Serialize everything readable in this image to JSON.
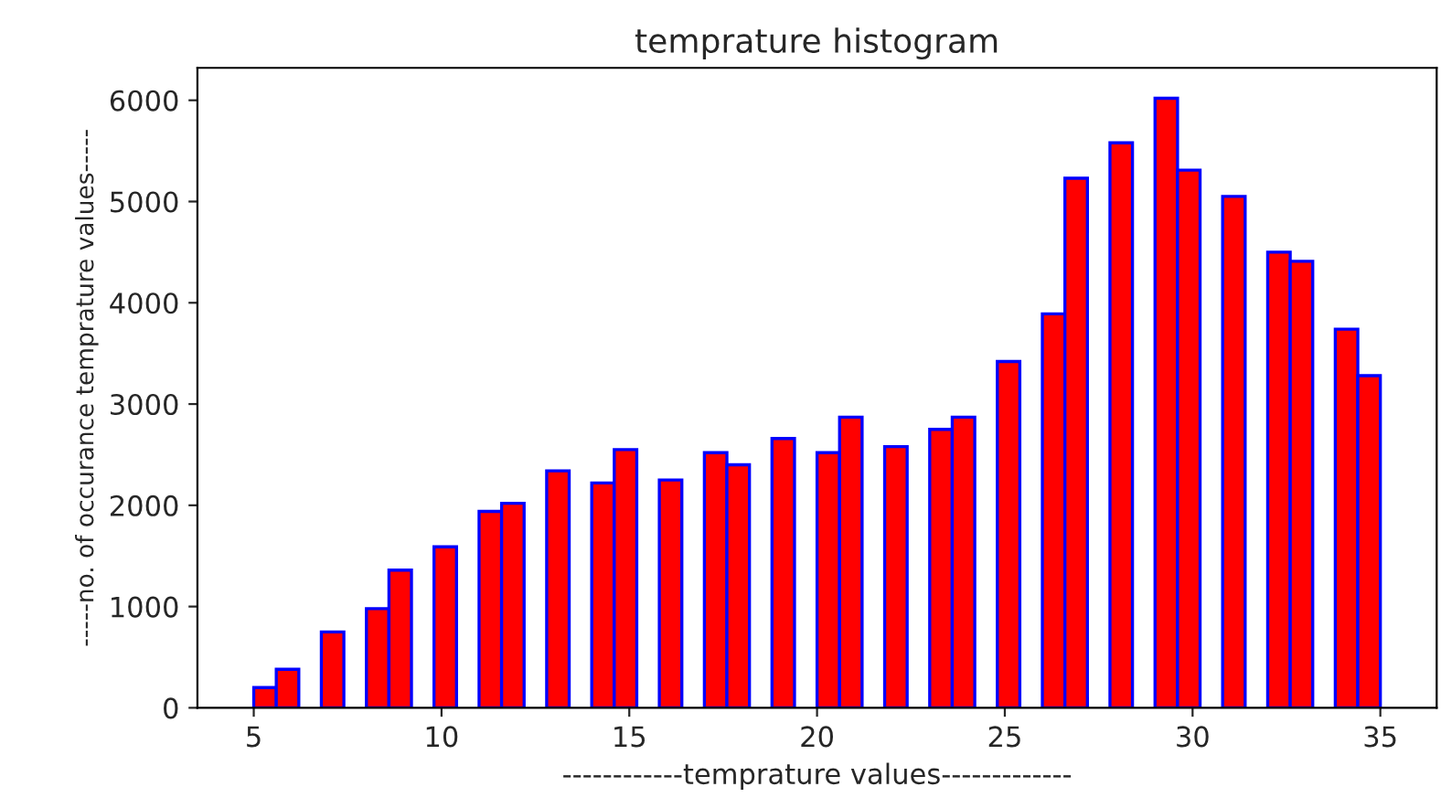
{
  "chart_data": {
    "type": "histogram",
    "title": "temprature histogram",
    "xlabel": "------------temprature values-------------",
    "ylabel": "-----no. of occurance temprature values-----",
    "bins": [
      5,
      5.6,
      6.2,
      6.8,
      7.4,
      8,
      8.6,
      9.2,
      9.8,
      10.4,
      11,
      11.6,
      12.2,
      12.8,
      13.4,
      14,
      14.6,
      15.2,
      15.8,
      16.4,
      17,
      17.6,
      18.2,
      18.8,
      19.4,
      20,
      20.6,
      21.2,
      21.8,
      22.4,
      23,
      23.6,
      24.2,
      24.8,
      25.4,
      26,
      26.6,
      27.2,
      27.8,
      28.4,
      29,
      29.6,
      30.2,
      30.8,
      31.4,
      32,
      32.6,
      33.2,
      33.8,
      34.4,
      35
    ],
    "values": [
      200,
      380,
      0,
      750,
      0,
      980,
      1360,
      0,
      1590,
      0,
      1940,
      2020,
      0,
      2340,
      0,
      2220,
      2550,
      0,
      2250,
      0,
      2520,
      2400,
      0,
      2660,
      0,
      2520,
      2870,
      0,
      2580,
      0,
      2750,
      2870,
      0,
      3420,
      0,
      3890,
      5230,
      0,
      5580,
      0,
      6020,
      5310,
      0,
      5050,
      0,
      4500,
      4410,
      0,
      3740,
      3280
    ],
    "color": "#ff0000",
    "xlim": [
      3.5,
      36.5
    ],
    "ylim": [
      0,
      6320
    ],
    "xticks": [
      5,
      10,
      15,
      20,
      25,
      30,
      35
    ],
    "yticks": [
      0,
      1000,
      2000,
      3000,
      4000,
      5000,
      6000
    ],
    "grid": false,
    "legend": false
  }
}
